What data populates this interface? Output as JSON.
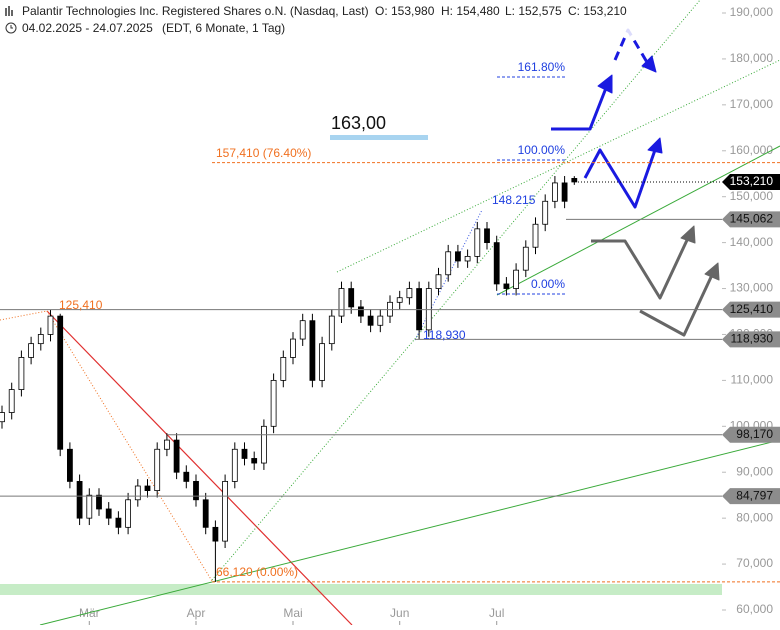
{
  "chart_data": {
    "type": "candlestick",
    "title": "Palantir Technologies Inc. Registered Shares o.N. (Nasdaq, Last)",
    "quote": [
      "O: 153,980",
      "H: 154,480",
      "L: 152,575",
      "C: 153,210"
    ],
    "subtitle": "04.02.2025 - 24.07.2025",
    "subtitle_note": "(EDT, 6 Monate, 1 Tag)",
    "categories": [
      null,
      null,
      null,
      null,
      null,
      null,
      null,
      null,
      null,
      "Mär",
      null,
      null,
      null,
      null,
      null,
      null,
      null,
      null,
      null,
      null,
      "Apr",
      null,
      null,
      null,
      null,
      null,
      null,
      null,
      null,
      null,
      "Mai",
      null,
      null,
      null,
      null,
      null,
      null,
      null,
      null,
      null,
      null,
      "Jun",
      null,
      null,
      null,
      null,
      null,
      null,
      null,
      null,
      null,
      "Jul",
      null,
      null,
      null,
      null,
      null,
      null,
      null,
      null
    ],
    "open": [
      101000,
      103000,
      108000,
      115000,
      118000,
      120000,
      124000,
      95000,
      88000,
      80000,
      85000,
      82000,
      80000,
      78000,
      84000,
      87000,
      86000,
      95000,
      97000,
      90000,
      88000,
      84000,
      78000,
      75000,
      88000,
      95000,
      93000,
      92000,
      100000,
      110000,
      115000,
      119000,
      123000,
      110000,
      118000,
      124000,
      130000,
      126000,
      124000,
      122000,
      124000,
      127000,
      128000,
      130000,
      121000,
      130000,
      133000,
      138000,
      136000,
      137000,
      143000,
      140000,
      131000,
      130000,
      134000,
      139000,
      144000,
      149000,
      153000,
      153980
    ],
    "high": [
      104500,
      109500,
      116500,
      119500,
      121500,
      125410,
      124500,
      96500,
      89500,
      86500,
      86500,
      83500,
      81500,
      85500,
      88500,
      88500,
      96500,
      98500,
      98500,
      91500,
      89500,
      85500,
      79500,
      89500,
      96500,
      96500,
      94500,
      101500,
      111500,
      116500,
      120500,
      124500,
      124500,
      119500,
      125500,
      131500,
      131500,
      127500,
      125500,
      125500,
      128500,
      129500,
      131500,
      131500,
      131500,
      134500,
      139500,
      139500,
      138500,
      144500,
      144500,
      141500,
      132500,
      135500,
      140500,
      145500,
      150500,
      154500,
      154500,
      154480
    ],
    "low": [
      99500,
      101500,
      106500,
      113500,
      116500,
      118500,
      93500,
      86500,
      78500,
      78500,
      80500,
      78500,
      76500,
      76500,
      82500,
      84500,
      84500,
      93500,
      88500,
      86500,
      82500,
      76500,
      66120,
      73500,
      86500,
      91500,
      90500,
      90500,
      98500,
      108500,
      113500,
      117500,
      108500,
      108500,
      116500,
      122500,
      124500,
      122500,
      120500,
      120500,
      122500,
      125500,
      126500,
      118930,
      119500,
      128500,
      131500,
      134500,
      134500,
      135500,
      138500,
      129500,
      128500,
      128500,
      132500,
      137500,
      142500,
      147500,
      147500,
      152575
    ],
    "close": [
      103000,
      108000,
      115000,
      118000,
      120000,
      124000,
      95000,
      88000,
      80000,
      85000,
      82000,
      80000,
      78000,
      84000,
      87000,
      86000,
      95000,
      97000,
      90000,
      88000,
      84000,
      78000,
      75000,
      88000,
      95000,
      93000,
      92000,
      100000,
      110000,
      115000,
      119000,
      123000,
      110000,
      118000,
      124000,
      130000,
      126000,
      124000,
      122000,
      124000,
      127000,
      128000,
      130000,
      121000,
      130000,
      133000,
      138000,
      136000,
      137000,
      143000,
      140000,
      131000,
      130000,
      134000,
      139000,
      144000,
      149000,
      153000,
      149000,
      153210
    ],
    "ylim": [
      60000,
      190000
    ],
    "yticks": [
      {
        "value": 60000,
        "label": "60,000"
      },
      {
        "value": 70000,
        "label": "70,000"
      },
      {
        "value": 80000,
        "label": "80,000"
      },
      {
        "value": 90000,
        "label": "90,000"
      },
      {
        "value": 100000,
        "label": "100,000"
      },
      {
        "value": 110000,
        "label": "110,000"
      },
      {
        "value": 120000,
        "label": "120,000"
      },
      {
        "value": 130000,
        "label": "130,000"
      },
      {
        "value": 140000,
        "label": "140,000"
      },
      {
        "value": 150000,
        "label": "150,000"
      },
      {
        "value": 160000,
        "label": "160,000"
      },
      {
        "value": 170000,
        "label": "170,000"
      },
      {
        "value": 180000,
        "label": "180,000"
      },
      {
        "value": 190000,
        "label": "190,000"
      }
    ],
    "levels": [
      {
        "value": 145062,
        "label": "145,062"
      },
      {
        "value": 125410,
        "label": "125,410"
      },
      {
        "value": 118930,
        "label": "118,930"
      },
      {
        "value": 98170,
        "label": "98,170"
      },
      {
        "value": 84797,
        "label": "84,797"
      }
    ],
    "current": {
      "value": 153210,
      "label": "153,210"
    },
    "fib_levels": [
      {
        "value": 176060,
        "label": "161.80%"
      },
      {
        "value": 158000,
        "label": "100.00%"
      },
      {
        "value": 128800,
        "label": "0.00%"
      }
    ],
    "orange_levels": [
      {
        "value": 157410,
        "label": "157,410 (76.40%)"
      },
      {
        "value": 66120,
        "label": "66,120 (0.00%)"
      }
    ],
    "annotations": [
      "125,410",
      "148.215",
      "118,930",
      "163,00"
    ],
    "up_color": "#ffffff",
    "down_color": "#000000"
  }
}
